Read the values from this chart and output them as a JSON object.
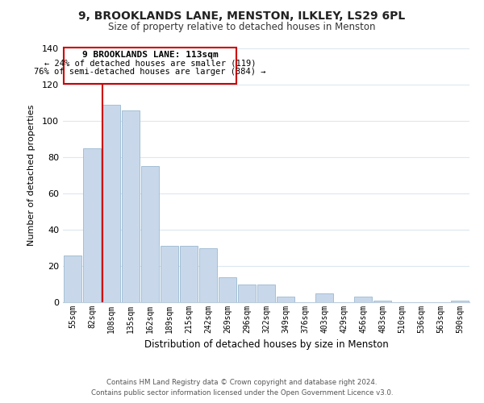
{
  "title": "9, BROOKLANDS LANE, MENSTON, ILKLEY, LS29 6PL",
  "subtitle": "Size of property relative to detached houses in Menston",
  "xlabel": "Distribution of detached houses by size in Menston",
  "ylabel": "Number of detached properties",
  "bar_labels": [
    "55sqm",
    "82sqm",
    "108sqm",
    "135sqm",
    "162sqm",
    "189sqm",
    "215sqm",
    "242sqm",
    "269sqm",
    "296sqm",
    "322sqm",
    "349sqm",
    "376sqm",
    "403sqm",
    "429sqm",
    "456sqm",
    "483sqm",
    "510sqm",
    "536sqm",
    "563sqm",
    "590sqm"
  ],
  "bar_values": [
    26,
    85,
    109,
    106,
    75,
    31,
    31,
    30,
    14,
    10,
    10,
    3,
    0,
    5,
    0,
    3,
    1,
    0,
    0,
    0,
    1
  ],
  "bar_color": "#c8d8ea",
  "bar_edge_color": "#9ab8d0",
  "highlight_line_color": "#cc0000",
  "ylim": [
    0,
    140
  ],
  "yticks": [
    0,
    20,
    40,
    60,
    80,
    100,
    120,
    140
  ],
  "annotation_title": "9 BROOKLANDS LANE: 113sqm",
  "annotation_line1": "← 24% of detached houses are smaller (119)",
  "annotation_line2": "76% of semi-detached houses are larger (384) →",
  "annotation_box_color": "#ffffff",
  "annotation_box_edge": "#cc0000",
  "footer_line1": "Contains HM Land Registry data © Crown copyright and database right 2024.",
  "footer_line2": "Contains public sector information licensed under the Open Government Licence v3.0.",
  "background_color": "#ffffff",
  "grid_color": "#dce8f0"
}
